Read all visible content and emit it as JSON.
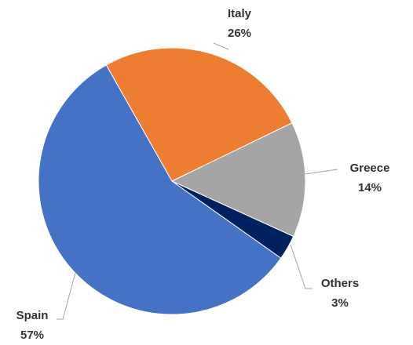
{
  "chart_data": {
    "type": "pie",
    "title": "",
    "slices": [
      {
        "label": "Spain",
        "value": 57,
        "value_label": "57%",
        "color": "#4472C4"
      },
      {
        "label": "Italy",
        "value": 26,
        "value_label": "26%",
        "color": "#ED7D31"
      },
      {
        "label": "Greece",
        "value": 14,
        "value_label": "14%",
        "color": "#A5A5A5"
      },
      {
        "label": "Others",
        "value": 3,
        "value_label": "3%",
        "color": "#002060"
      }
    ],
    "legend": "none",
    "data_labels": "outside-with-leader-lines"
  }
}
